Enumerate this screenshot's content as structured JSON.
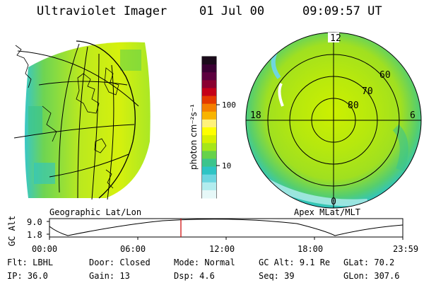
{
  "header": {
    "title": "Ultraviolet Imager",
    "date": "01 Jul 00",
    "time": "09:09:57 UT"
  },
  "geo_panel": {
    "label": "Geographic Lat/Lon"
  },
  "polar_panel": {
    "label": "Apex MLat/MLT",
    "mlt_labels": [
      "12",
      "18",
      "6",
      "0"
    ],
    "lat_labels": [
      "60",
      "70",
      "80"
    ]
  },
  "colorbar": {
    "unit": "photon cm⁻²s⁻¹",
    "ticks": [
      "100",
      "10"
    ],
    "colors": [
      "#1a0a1a",
      "#3a0033",
      "#5c003f",
      "#8a0030",
      "#c40018",
      "#e43a00",
      "#f47f00",
      "#f8b400",
      "#fff27a",
      "#ffff00",
      "#d8f000",
      "#a6e61a",
      "#66d24a",
      "#3cc48c",
      "#2ec4c4",
      "#6ed6e0",
      "#b2ecee",
      "#e6f8f8"
    ]
  },
  "altitude_plot": {
    "ylabel": "GC Alt",
    "yticks": [
      "9.0",
      "1.8"
    ],
    "xticks": [
      "00:00",
      "06:00",
      "12:00",
      "18:00",
      "23:59"
    ],
    "marker_time": "09:09:57"
  },
  "info": {
    "row1": [
      {
        "key": "Flt:",
        "value": "LBHL"
      },
      {
        "key": "Door:",
        "value": "Closed"
      },
      {
        "key": "Mode:",
        "value": "Normal"
      },
      {
        "key": "GC Alt:",
        "value": "9.1 Re"
      },
      {
        "key": "GLat:",
        "value": "70.2"
      }
    ],
    "row2": [
      {
        "key": "IP:",
        "value": "36.0"
      },
      {
        "key": "Gain:",
        "value": "13"
      },
      {
        "key": "Dsp:",
        "value": "4.6"
      },
      {
        "key": "Seq:",
        "value": "39"
      },
      {
        "key": "GLon:",
        "value": "307.6"
      }
    ]
  }
}
